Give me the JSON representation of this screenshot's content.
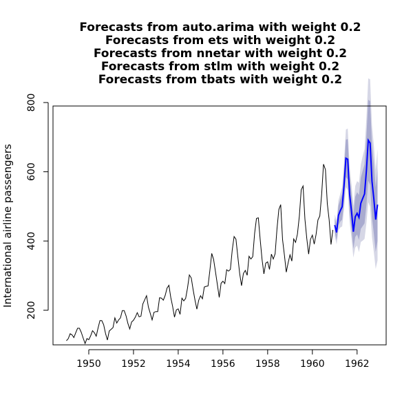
{
  "chart_data": {
    "type": "line",
    "title_lines": [
      "Forecasts from auto.arima with weight 0.2",
      "Forecasts from ets with weight 0.2",
      "Forecasts from nnetar with weight 0.2",
      "Forecasts from stlm with weight 0.2",
      "Forecasts from tbats with weight 0.2"
    ],
    "xlabel": "",
    "ylabel": "International airline passengers",
    "xlim": [
      1948.4,
      1963.3
    ],
    "ylim": [
      100,
      790
    ],
    "x_ticks": [
      1950,
      1952,
      1954,
      1956,
      1958,
      1960,
      1962
    ],
    "y_ticks": [
      200,
      400,
      600,
      800
    ],
    "grid": false,
    "colors": {
      "history": "#000000",
      "forecast": "#0000ff",
      "band80": "#a9abcf",
      "band95": "#d6d7e6"
    },
    "series": [
      {
        "values": [
          112,
          118,
          132,
          129,
          121,
          135,
          148,
          148,
          136,
          119,
          104,
          118,
          115,
          126,
          141,
          135,
          125,
          149,
          170,
          170,
          158,
          133,
          114,
          140,
          145,
          150,
          178,
          163,
          172,
          178,
          199,
          199,
          184,
          162,
          146,
          166,
          171,
          180,
          193,
          181,
          183,
          218,
          230,
          242,
          209,
          191,
          172,
          194,
          196,
          196,
          236,
          235,
          229,
          243,
          264,
          272,
          237,
          211,
          180,
          201,
          204,
          188,
          235,
          227,
          234,
          264,
          302,
          293,
          259,
          229,
          203,
          229,
          242,
          233,
          267,
          269,
          270,
          315,
          364,
          347,
          312,
          274,
          237,
          278,
          284,
          277,
          317,
          313,
          318,
          374,
          413,
          405,
          355,
          306,
          271,
          306,
          315,
          301,
          356,
          348,
          355,
          422,
          465,
          467,
          404,
          347,
          305,
          336,
          340,
          318,
          362,
          348,
          363,
          435,
          491,
          505,
          404,
          359,
          310,
          337,
          360,
          342,
          406,
          396,
          420,
          472,
          548,
          559,
          463,
          407,
          362,
          405,
          417,
          391,
          419,
          461,
          472,
          535,
          622,
          606,
          508,
          461,
          390,
          432
        ]
      },
      {
        "values": [
          446,
          425,
          474,
          488,
          499,
          560,
          639,
          636,
          535,
          485,
          427,
          470,
          480,
          468,
          509,
          523,
          536,
          603,
          691,
          683,
          573,
          522,
          462,
          505
        ],
        "lower80": [
          426,
          402,
          446,
          456,
          462,
          515,
          585,
          578,
          483,
          434,
          378,
          412,
          419,
          403,
          435,
          443,
          451,
          503,
          574,
          562,
          468,
          421,
          369,
          400
        ],
        "upper80": [
          466,
          448,
          502,
          520,
          536,
          605,
          693,
          694,
          587,
          536,
          476,
          528,
          541,
          533,
          583,
          603,
          621,
          703,
          808,
          804,
          678,
          623,
          555,
          610
        ],
        "lower95": [
          415,
          390,
          431,
          439,
          442,
          491,
          556,
          547,
          455,
          407,
          352,
          381,
          387,
          368,
          397,
          401,
          406,
          451,
          512,
          499,
          412,
          368,
          319,
          344
        ],
        "upper95": [
          477,
          460,
          517,
          537,
          556,
          629,
          722,
          725,
          615,
          563,
          502,
          559,
          573,
          568,
          621,
          645,
          666,
          755,
          870,
          867,
          734,
          676,
          605,
          666
        ]
      }
    ]
  }
}
